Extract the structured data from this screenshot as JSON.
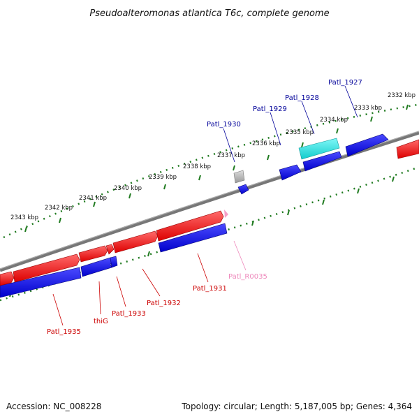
{
  "title": "Pseudoalteromonas atlantica T6c, complete genome",
  "footer": {
    "accession": "Accession: NC_008228",
    "summary": "Topology: circular; Length: 5,187,005 bp; Genes: 4,364"
  },
  "colors": {
    "forward_gene": "#ee1111",
    "reverse_gene": "#1111dd",
    "rna_gene": "#22dddd",
    "pseudo_gene": "#aaaaaa",
    "backbone": "#777777",
    "ticks": "#1f7a1f",
    "label_forward": "#cc0000",
    "label_reverse": "#000099",
    "label_rna": "#ee88bb"
  },
  "scale_labels": [
    "2343 kbp",
    "2342 kbp",
    "2341 kbp",
    "2340 kbp",
    "2339 kbp",
    "2338 kbp",
    "2337 kbp",
    "2336 kbp",
    "2335 kbp",
    "2334 kbp",
    "2333 kbp",
    "2332 kbp"
  ],
  "gene_labels_outer": [
    "Patl_1930",
    "Patl_1929",
    "Patl_1928",
    "Patl_1927"
  ],
  "gene_labels_inner": [
    "Patl_1935",
    "thiG",
    "Patl_1933",
    "Patl_1932",
    "Patl_1931",
    "Patl_R0035"
  ]
}
